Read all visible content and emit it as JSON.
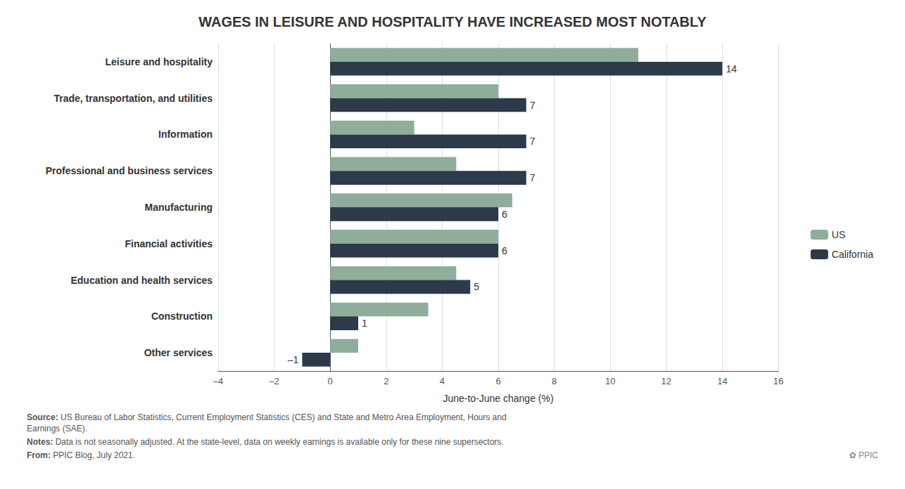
{
  "chart_data": {
    "type": "bar",
    "orientation": "horizontal",
    "title": "WAGES IN LEISURE AND HOSPITALITY HAVE INCREASED MOST NOTABLY",
    "categories": [
      "Leisure and hospitality",
      "Trade, transportation, and utilities",
      "Information",
      "Professional and business services",
      "Manufacturing",
      "Financial activities",
      "Education and health services",
      "Construction",
      "Other services"
    ],
    "series": [
      {
        "name": "US",
        "color": "#8fad9b",
        "values": [
          11,
          6,
          3,
          4.5,
          6.5,
          6,
          4.5,
          3.5,
          1
        ]
      },
      {
        "name": "California",
        "color": "#2d3a4a",
        "values": [
          14,
          7,
          7,
          7,
          6,
          6,
          5,
          1,
          -1
        ],
        "value_labels": [
          "14",
          "7",
          "7",
          "7",
          "6",
          "6",
          "5",
          "1",
          "–1"
        ]
      }
    ],
    "xlabel": "June-to-June change (%)",
    "xlim": [
      -4,
      16
    ],
    "xticks": [
      {
        "value": -4,
        "label": "–4"
      },
      {
        "value": -2,
        "label": "–2"
      },
      0,
      2,
      4,
      6,
      8,
      10,
      12,
      14,
      16
    ],
    "grid": true,
    "legend": "right",
    "footnotes": [
      {
        "bold": "Source:",
        "text": " US Bureau of Labor Statistics, Current Employment Statistics (CES) and State and Metro Area Employment, Hours and\nEarnings (SAE)."
      },
      {
        "bold": "Notes:",
        "text": " Data is not seasonally adjusted. At the state-level, data on weekly earnings is available only for these nine supersectors."
      },
      {
        "bold": "From:",
        "text": " PPIC Blog, July 2021."
      }
    ],
    "annotations": [
      "✿ PPIC"
    ]
  }
}
